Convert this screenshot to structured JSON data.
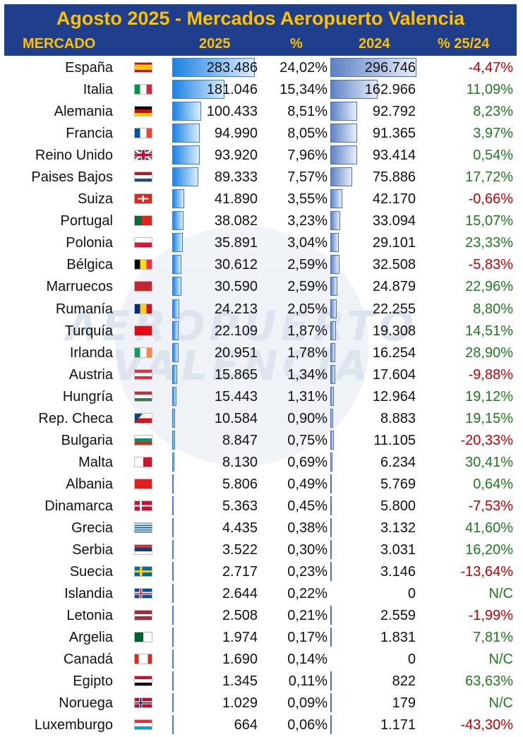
{
  "title": "Agosto 2025 - Mercados Aeropuerto Valencia",
  "watermark": {
    "line1": "AEROPUERTO",
    "line2": "VALENCIA"
  },
  "headers": {
    "mercado": "MERCADO",
    "y2025": "2025",
    "pct": "%",
    "y2024": "2024",
    "var": "% 25/24"
  },
  "colors": {
    "header_bg": "#1f3f8c",
    "header_text": "#ffc000",
    "positive": "#1e7a1e",
    "negative": "#c00000"
  },
  "bar_max": 296746,
  "rows": [
    {
      "name": "España",
      "flag": "flag-spain",
      "v2025": "283.486",
      "n2025": 283486,
      "pct": "24,02%",
      "v2024": "296.746",
      "n2024": 296746,
      "var": "-4,47%",
      "sign": "neg"
    },
    {
      "name": "Italia",
      "flag": "flag-italy",
      "v2025": "181.046",
      "n2025": 181046,
      "pct": "15,34%",
      "v2024": "162.966",
      "n2024": 162966,
      "var": "11,09%",
      "sign": "pos"
    },
    {
      "name": "Alemania",
      "flag": "flag-germany",
      "v2025": "100.433",
      "n2025": 100433,
      "pct": "8,51%",
      "v2024": "92.792",
      "n2024": 92792,
      "var": "8,23%",
      "sign": "pos"
    },
    {
      "name": "Francia",
      "flag": "flag-france",
      "v2025": "94.990",
      "n2025": 94990,
      "pct": "8,05%",
      "v2024": "91.365",
      "n2024": 91365,
      "var": "3,97%",
      "sign": "pos"
    },
    {
      "name": "Reino Unido",
      "flag": "flag-uk",
      "v2025": "93.920",
      "n2025": 93920,
      "pct": "7,96%",
      "v2024": "93.414",
      "n2024": 93414,
      "var": "0,54%",
      "sign": "pos"
    },
    {
      "name": "Paises Bajos",
      "flag": "flag-netherlands",
      "v2025": "89.333",
      "n2025": 89333,
      "pct": "7,57%",
      "v2024": "75.886",
      "n2024": 75886,
      "var": "17,72%",
      "sign": "pos"
    },
    {
      "name": "Suiza",
      "flag": "flag-switzerland",
      "v2025": "41.890",
      "n2025": 41890,
      "pct": "3,55%",
      "v2024": "42.170",
      "n2024": 42170,
      "var": "-0,66%",
      "sign": "neg"
    },
    {
      "name": "Portugal",
      "flag": "flag-portugal",
      "v2025": "38.082",
      "n2025": 38082,
      "pct": "3,23%",
      "v2024": "33.094",
      "n2024": 33094,
      "var": "15,07%",
      "sign": "pos"
    },
    {
      "name": "Polonia",
      "flag": "flag-poland",
      "v2025": "35.891",
      "n2025": 35891,
      "pct": "3,04%",
      "v2024": "29.101",
      "n2024": 29101,
      "var": "23,33%",
      "sign": "pos"
    },
    {
      "name": "Bélgica",
      "flag": "flag-belgium",
      "v2025": "30.612",
      "n2025": 30612,
      "pct": "2,59%",
      "v2024": "32.508",
      "n2024": 32508,
      "var": "-5,83%",
      "sign": "neg"
    },
    {
      "name": "Marruecos",
      "flag": "flag-morocco",
      "v2025": "30.590",
      "n2025": 30590,
      "pct": "2,59%",
      "v2024": "24.879",
      "n2024": 24879,
      "var": "22,96%",
      "sign": "pos"
    },
    {
      "name": "Rumanía",
      "flag": "flag-romania",
      "v2025": "24.213",
      "n2025": 24213,
      "pct": "2,05%",
      "v2024": "22.255",
      "n2024": 22255,
      "var": "8,80%",
      "sign": "pos"
    },
    {
      "name": "Turquía",
      "flag": "flag-turkey",
      "v2025": "22.109",
      "n2025": 22109,
      "pct": "1,87%",
      "v2024": "19.308",
      "n2024": 19308,
      "var": "14,51%",
      "sign": "pos"
    },
    {
      "name": "Irlanda",
      "flag": "flag-ireland",
      "v2025": "20.951",
      "n2025": 20951,
      "pct": "1,78%",
      "v2024": "16.254",
      "n2024": 16254,
      "var": "28,90%",
      "sign": "pos"
    },
    {
      "name": "Austria",
      "flag": "flag-austria",
      "v2025": "15.865",
      "n2025": 15865,
      "pct": "1,34%",
      "v2024": "17.604",
      "n2024": 17604,
      "var": "-9,88%",
      "sign": "neg"
    },
    {
      "name": "Hungría",
      "flag": "flag-hungary",
      "v2025": "15.443",
      "n2025": 15443,
      "pct": "1,31%",
      "v2024": "12.964",
      "n2024": 12964,
      "var": "19,12%",
      "sign": "pos"
    },
    {
      "name": "Rep. Checa",
      "flag": "flag-czech",
      "v2025": "10.584",
      "n2025": 10584,
      "pct": "0,90%",
      "v2024": "8.883",
      "n2024": 8883,
      "var": "19,15%",
      "sign": "pos"
    },
    {
      "name": "Bulgaria",
      "flag": "flag-bulgaria",
      "v2025": "8.847",
      "n2025": 8847,
      "pct": "0,75%",
      "v2024": "11.105",
      "n2024": 11105,
      "var": "-20,33%",
      "sign": "neg"
    },
    {
      "name": "Malta",
      "flag": "flag-malta",
      "v2025": "8.130",
      "n2025": 8130,
      "pct": "0,69%",
      "v2024": "6.234",
      "n2024": 6234,
      "var": "30,41%",
      "sign": "pos"
    },
    {
      "name": "Albania",
      "flag": "flag-albania",
      "v2025": "5.806",
      "n2025": 5806,
      "pct": "0,49%",
      "v2024": "5.769",
      "n2024": 5769,
      "var": "0,64%",
      "sign": "pos"
    },
    {
      "name": "Dinamarca",
      "flag": "flag-denmark",
      "v2025": "5.363",
      "n2025": 5363,
      "pct": "0,45%",
      "v2024": "5.800",
      "n2024": 5800,
      "var": "-7,53%",
      "sign": "neg"
    },
    {
      "name": "Grecia",
      "flag": "flag-greece",
      "v2025": "4.435",
      "n2025": 4435,
      "pct": "0,38%",
      "v2024": "3.132",
      "n2024": 3132,
      "var": "41,60%",
      "sign": "pos"
    },
    {
      "name": "Serbia",
      "flag": "flag-serbia",
      "v2025": "3.522",
      "n2025": 3522,
      "pct": "0,30%",
      "v2024": "3.031",
      "n2024": 3031,
      "var": "16,20%",
      "sign": "pos"
    },
    {
      "name": "Suecia",
      "flag": "flag-sweden",
      "v2025": "2.717",
      "n2025": 2717,
      "pct": "0,23%",
      "v2024": "3.146",
      "n2024": 3146,
      "var": "-13,64%",
      "sign": "neg"
    },
    {
      "name": "Islandia",
      "flag": "flag-iceland",
      "v2025": "2.644",
      "n2025": 2644,
      "pct": "0,22%",
      "v2024": "0",
      "n2024": 0,
      "var": "N/C",
      "sign": "pos"
    },
    {
      "name": "Letonia",
      "flag": "flag-latvia",
      "v2025": "2.508",
      "n2025": 2508,
      "pct": "0,21%",
      "v2024": "2.559",
      "n2024": 2559,
      "var": "-1,99%",
      "sign": "neg"
    },
    {
      "name": "Argelia",
      "flag": "flag-algeria",
      "v2025": "1.974",
      "n2025": 1974,
      "pct": "0,17%",
      "v2024": "1.831",
      "n2024": 1831,
      "var": "7,81%",
      "sign": "pos"
    },
    {
      "name": "Canadá",
      "flag": "flag-canada",
      "v2025": "1.690",
      "n2025": 1690,
      "pct": "0,14%",
      "v2024": "0",
      "n2024": 0,
      "var": "N/C",
      "sign": "pos"
    },
    {
      "name": "Egipto",
      "flag": "flag-egypt",
      "v2025": "1.345",
      "n2025": 1345,
      "pct": "0,11%",
      "v2024": "822",
      "n2024": 822,
      "var": "63,63%",
      "sign": "pos"
    },
    {
      "name": "Noruega",
      "flag": "flag-norway",
      "v2025": "1.029",
      "n2025": 1029,
      "pct": "0,09%",
      "v2024": "179",
      "n2024": 179,
      "var": "N/C",
      "sign": "pos"
    },
    {
      "name": "Luxemburgo",
      "flag": "flag-luxembourg",
      "v2025": "664",
      "n2025": 664,
      "pct": "0,06%",
      "v2024": "1.171",
      "n2024": 1171,
      "var": "-43,30%",
      "sign": "neg"
    }
  ]
}
